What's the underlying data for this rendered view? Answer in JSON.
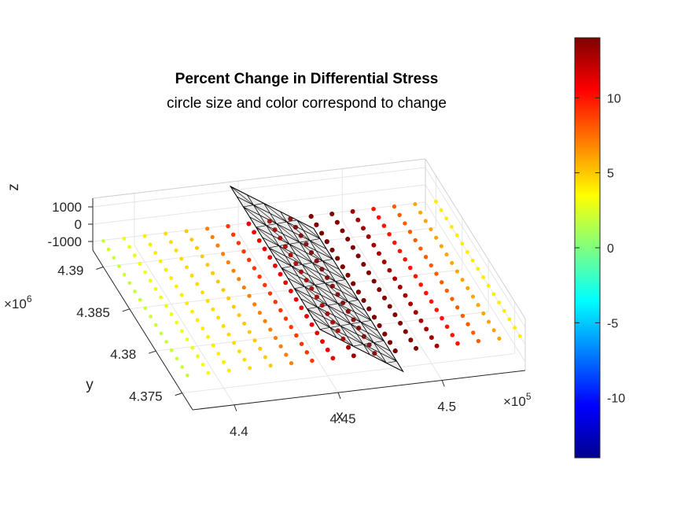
{
  "chart_data": {
    "type": "scatter",
    "projection": "3d",
    "title": "Percent Change in Differential Stress",
    "subtitle": "circle size and color correspond to change",
    "xlabel": "x",
    "ylabel": "y",
    "zlabel": "z",
    "x_ticks": [
      "4.4",
      "4.45",
      "4.5"
    ],
    "x_multiplier": "×10",
    "x_multiplier_exp": "5",
    "y_ticks": [
      "4.375",
      "4.38",
      "4.385",
      "4.39"
    ],
    "y_multiplier": "×10",
    "y_multiplier_exp": "6",
    "z_ticks": [
      "1000",
      "0",
      "-1000"
    ],
    "xlim": [
      438000,
      454000
    ],
    "ylim": [
      4373000,
      4392000
    ],
    "zlim": [
      -1500,
      1500
    ],
    "grid": true,
    "points": {
      "x_start": 438000,
      "x_step": 1000,
      "x_count": 17,
      "y_start": 4374000,
      "y_step": 1000,
      "y_count": 17,
      "z": 0,
      "change_pct_by_x": [
        2,
        3,
        4,
        4.5,
        5,
        7,
        9,
        11,
        13,
        14,
        14,
        14,
        13,
        10,
        8,
        6,
        4
      ]
    },
    "fault_plane": {
      "edges_xy": [
        [
          444500,
          4391500
        ],
        [
          448500,
          4391500
        ],
        [
          448500,
          4374500
        ],
        [
          444500,
          4374500
        ]
      ],
      "z_range": [
        -1500,
        1500
      ],
      "color": "#d9d9d9",
      "edge_color": "#000000"
    },
    "colorbar": {
      "colormap": "jet",
      "range": [
        -14,
        14
      ],
      "ticks": [
        "10",
        "5",
        "0",
        "-5",
        "-10"
      ]
    }
  }
}
